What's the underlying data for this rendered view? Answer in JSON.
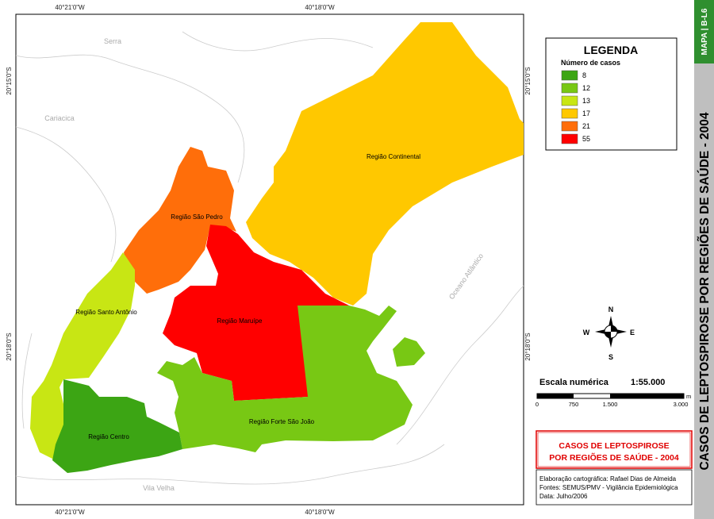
{
  "coordinates": {
    "longitudes": [
      "40°21'0\"W",
      "40°18'0\"W"
    ],
    "latitudes": [
      "20°15'0\"S",
      "20°18'0\"S"
    ]
  },
  "places": [
    "Serra",
    "Cariacica",
    "Vila Velha",
    "Oceano Atlântico"
  ],
  "regions": [
    {
      "label": "Região Continental",
      "color": "#ffc800"
    },
    {
      "label": "Região São Pedro",
      "color": "#ff6e0a"
    },
    {
      "label": "Região Maruípe",
      "color": "#ff0000"
    },
    {
      "label": "Região Forte São João",
      "color": "#78c814"
    },
    {
      "label": "Região Santo Antônio",
      "color": "#c8e614"
    },
    {
      "label": "Região Centro",
      "color": "#3ca514"
    }
  ],
  "legend": {
    "title": "LEGENDA",
    "subtitle": "Número de casos",
    "items": [
      {
        "value": 8,
        "color": "#3ca514"
      },
      {
        "value": 12,
        "color": "#78c814"
      },
      {
        "value": 13,
        "color": "#c8e614"
      },
      {
        "value": 17,
        "color": "#ffc800"
      },
      {
        "value": 21,
        "color": "#ff6e0a"
      },
      {
        "value": 55,
        "color": "#ff0000"
      }
    ]
  },
  "compass": {
    "north": "N",
    "east": "E",
    "south": "S",
    "west": "W"
  },
  "scale": {
    "title": "Escala numérica",
    "ratio": "1:55.000",
    "ticks": [
      "0",
      "750",
      "1.500",
      "3.000"
    ],
    "unit": "m"
  },
  "title_box": {
    "lines": [
      "CASOS DE LEPTOSPIROSE",
      "POR REGIÕES DE SAÚDE - 2004"
    ]
  },
  "credits": [
    "Elaboração cartográfica: Rafael Dias de Almeida",
    "Fontes: SEMUS/PMV - Vigilância Epidemiológica",
    "Data: Julho/2006"
  ],
  "side_band": {
    "code": "MAPA | B-L6",
    "title": "CASOS DE LEPTOSPIROSE POR REGIÕES DE SAÚDE - 2004"
  }
}
